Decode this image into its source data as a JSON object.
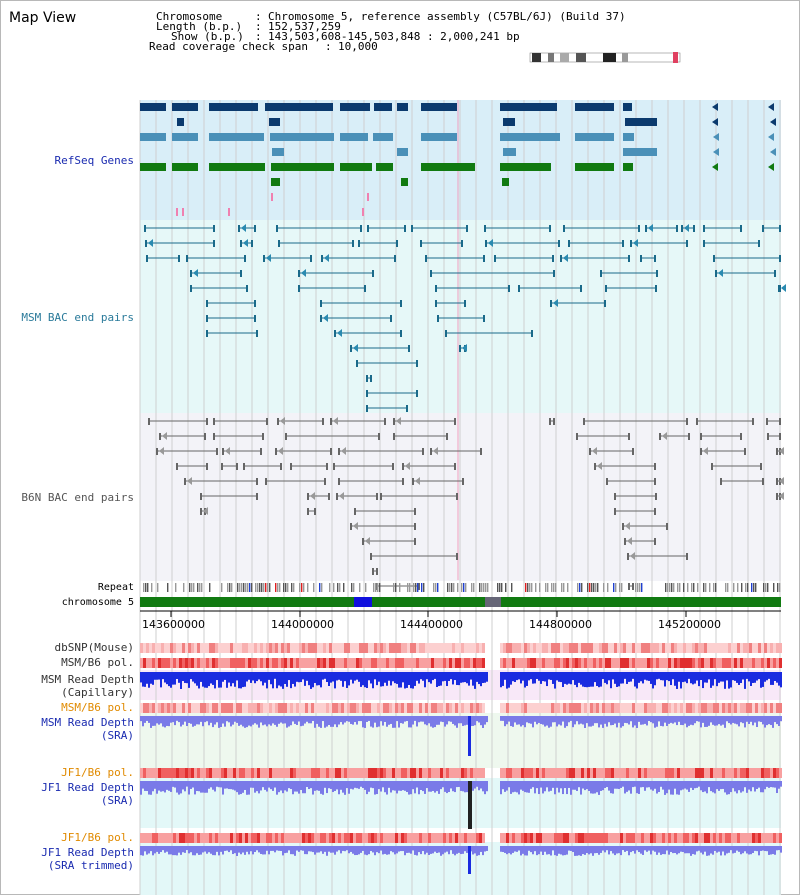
{
  "page": {
    "title": "Map View"
  },
  "info": {
    "chromosome_label": "Chromosome",
    "chromosome_value": "Chromosome 5, reference assembly (C57BL/6J) (Build 37)",
    "length_label": "Length (b.p.)",
    "length_value": "152,537,259",
    "show_label": "Show (b.p.)",
    "show_value": "143,503,608-145,503,848 : 2,000,241 bp",
    "coverage_label": "Read coverage check span",
    "coverage_value": "10,000"
  },
  "tracks": {
    "refseq": {
      "label": "RefSeq Genes",
      "color": "#1a2bb0"
    },
    "msm_bac": {
      "label": "MSM BAC end pairs",
      "color": "#2a7a9a"
    },
    "b6n_bac": {
      "label": "B6N BAC end pairs",
      "color": "#555555"
    },
    "repeat": {
      "label": "Repeat"
    },
    "chromosome": {
      "label": "chromosome 5"
    },
    "dbsnp": {
      "label": "dbSNP(Mouse)"
    },
    "msm_pol": {
      "label": "MSM/B6 pol."
    },
    "msm_depth_cap": {
      "label1": "MSM Read Depth",
      "label2": "(Capillary)"
    },
    "msm_pol2": {
      "label": "MSM/B6 pol.",
      "color": "#e08a00"
    },
    "msm_depth_sra": {
      "label1": "MSM Read Depth",
      "label2": "(SRA)"
    },
    "jf1_pol": {
      "label": "JF1/B6 pol.",
      "color": "#e08a00"
    },
    "jf1_depth_sra": {
      "label1": "JF1 Read Depth",
      "label2": "(SRA)"
    },
    "jf1_pol2": {
      "label": "JF1/B6 pol."
    },
    "jf1_depth_trim": {
      "label1": "JF1 Read Depth",
      "label2": "(SRA trimmed)"
    }
  },
  "axis": {
    "ticks": [
      "143600000",
      "144000000",
      "144400000",
      "144800000",
      "145200000"
    ]
  }
}
